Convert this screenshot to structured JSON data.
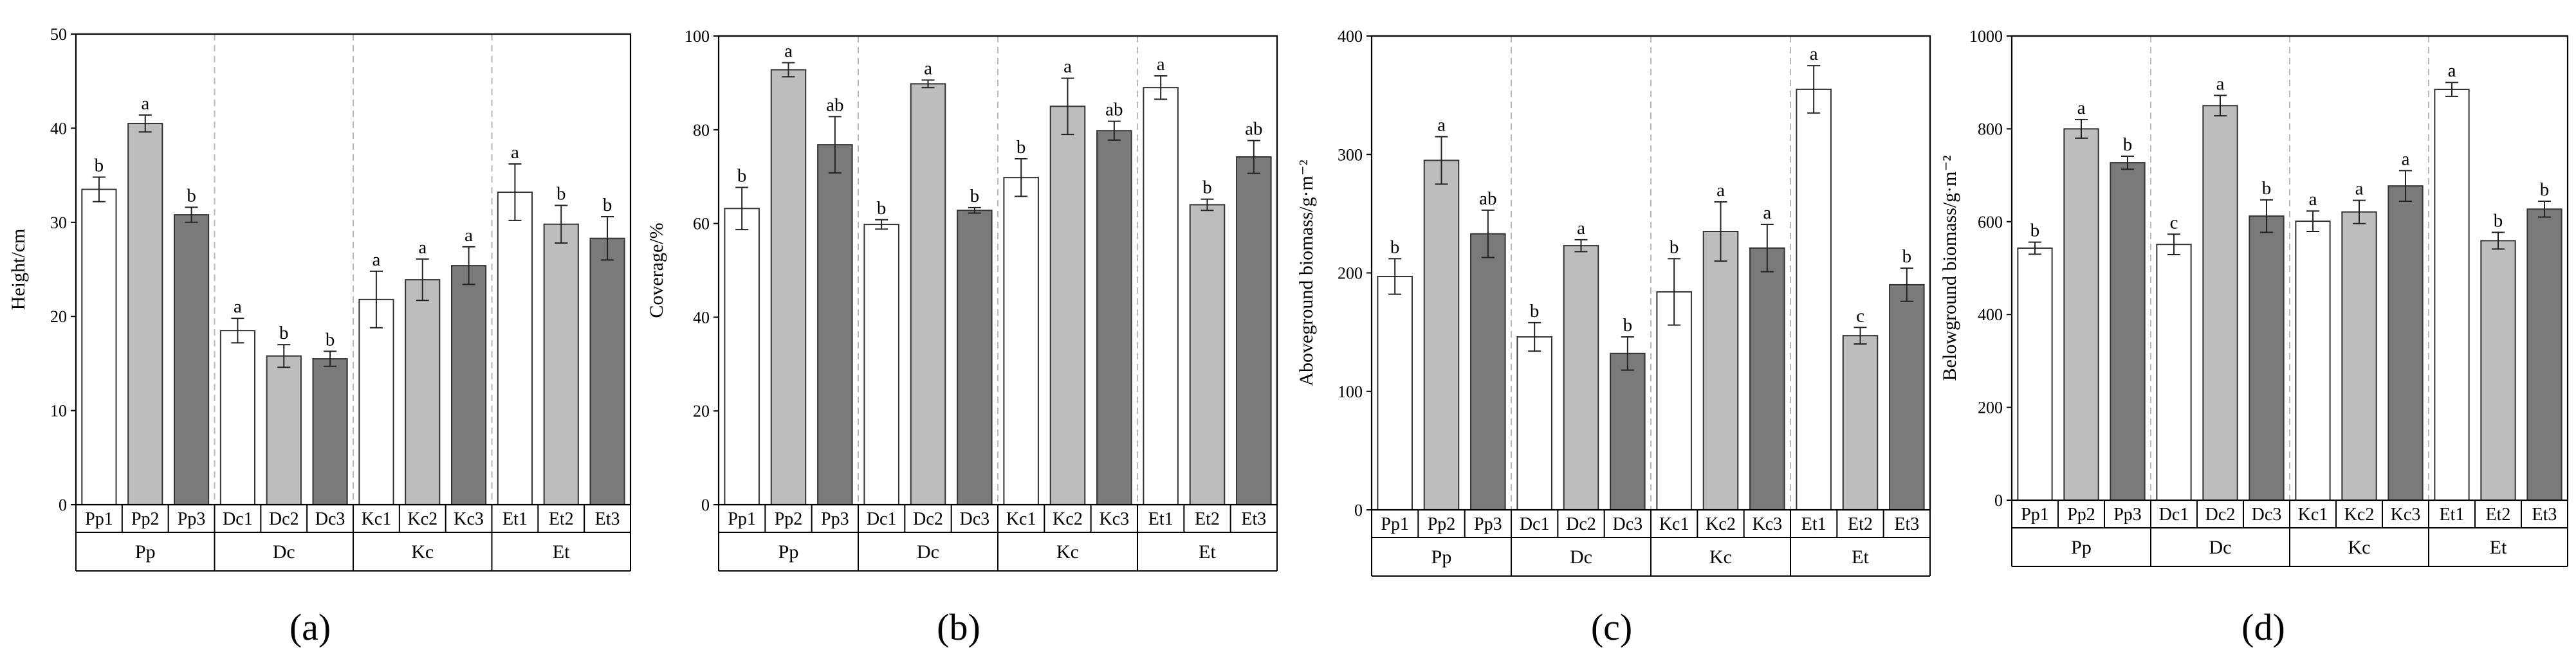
{
  "figure": {
    "groups": [
      "Pp",
      "Dc",
      "Kc",
      "Et"
    ],
    "panel_tags": [
      "(a)",
      "(b)",
      "(c)",
      "(d)"
    ]
  },
  "colors": {
    "level1": "#ffffff",
    "level2": "#bdbdbd",
    "level3": "#7a7a7a",
    "stroke": "#333333",
    "divider": "#b8b8b8"
  },
  "chart_data": [
    {
      "type": "bar",
      "panel": "a",
      "panel_tag": "(a)",
      "ylabel": "Height/cm",
      "xlabel": "",
      "ylim": [
        0,
        50
      ],
      "yticks": [
        0,
        10,
        20,
        30,
        40,
        50
      ],
      "categories": [
        "Pp1",
        "Pp2",
        "Pp3",
        "Dc1",
        "Dc2",
        "Dc3",
        "Kc1",
        "Kc2",
        "Kc3",
        "Et1",
        "Et2",
        "Et3"
      ],
      "groups": [
        "Pp",
        "Dc",
        "Kc",
        "Et"
      ],
      "values": [
        33.5,
        40.5,
        30.8,
        18.5,
        15.8,
        15.5,
        21.8,
        23.9,
        25.4,
        33.2,
        29.8,
        28.3
      ],
      "errors": [
        1.3,
        0.9,
        0.8,
        1.3,
        1.2,
        0.8,
        3.0,
        2.2,
        2.0,
        3.0,
        2.0,
        2.3
      ],
      "letters": [
        "b",
        "a",
        "b",
        "a",
        "b",
        "b",
        "a",
        "a",
        "a",
        "a",
        "b",
        "b"
      ]
    },
    {
      "type": "bar",
      "panel": "b",
      "panel_tag": "(b)",
      "ylabel": "Coverage/%",
      "xlabel": "",
      "ylim": [
        0,
        100
      ],
      "yticks": [
        0,
        20,
        40,
        60,
        80,
        100
      ],
      "categories": [
        "Pp1",
        "Pp2",
        "Pp3",
        "Dc1",
        "Dc2",
        "Dc3",
        "Kc1",
        "Kc2",
        "Kc3",
        "Et1",
        "Et2",
        "Et3"
      ],
      "groups": [
        "Pp",
        "Dc",
        "Kc",
        "Et"
      ],
      "values": [
        63.2,
        92.8,
        76.8,
        59.8,
        89.8,
        62.8,
        69.8,
        85.0,
        79.8,
        89.0,
        64.0,
        74.2
      ],
      "errors": [
        4.5,
        1.5,
        6.0,
        1.0,
        0.8,
        0.6,
        4.0,
        6.0,
        2.0,
        2.5,
        1.2,
        3.5
      ],
      "letters": [
        "b",
        "a",
        "ab",
        "b",
        "a",
        "b",
        "b",
        "a",
        "ab",
        "a",
        "b",
        "ab"
      ]
    },
    {
      "type": "bar",
      "panel": "c",
      "panel_tag": "(c)",
      "ylabel": "Aboveground biomass/g·m⁻²",
      "xlabel": "",
      "ylim": [
        0,
        400
      ],
      "yticks": [
        0,
        100,
        200,
        300,
        400
      ],
      "categories": [
        "Pp1",
        "Pp2",
        "Pp3",
        "Dc1",
        "Dc2",
        "Dc3",
        "Kc1",
        "Kc2",
        "Kc3",
        "Et1",
        "Et2",
        "Et3"
      ],
      "groups": [
        "Pp",
        "Dc",
        "Kc",
        "Et"
      ],
      "values": [
        197,
        295,
        233,
        146,
        223,
        132,
        184,
        235,
        221,
        355,
        147,
        190
      ],
      "errors": [
        15,
        20,
        20,
        12,
        5,
        14,
        28,
        25,
        20,
        20,
        7,
        14
      ],
      "letters": [
        "b",
        "a",
        "ab",
        "b",
        "a",
        "b",
        "b",
        "a",
        "a",
        "a",
        "c",
        "b"
      ]
    },
    {
      "type": "bar",
      "panel": "d",
      "panel_tag": "(d)",
      "ylabel": "Belowground biomass/g·m⁻²",
      "xlabel": "",
      "ylim": [
        0,
        1000
      ],
      "yticks": [
        0,
        200,
        400,
        600,
        800,
        1000
      ],
      "categories": [
        "Pp1",
        "Pp2",
        "Pp3",
        "Dc1",
        "Dc2",
        "Dc3",
        "Kc1",
        "Kc2",
        "Kc3",
        "Et1",
        "Et2",
        "Et3"
      ],
      "groups": [
        "Pp",
        "Dc",
        "Kc",
        "Et"
      ],
      "values": [
        543,
        800,
        727,
        551,
        850,
        612,
        601,
        621,
        677,
        885,
        559,
        627
      ],
      "errors": [
        13,
        20,
        14,
        22,
        22,
        35,
        22,
        25,
        33,
        15,
        18,
        17
      ],
      "letters": [
        "b",
        "a",
        "b",
        "c",
        "a",
        "b",
        "a",
        "a",
        "a",
        "a",
        "b",
        "b"
      ]
    }
  ]
}
